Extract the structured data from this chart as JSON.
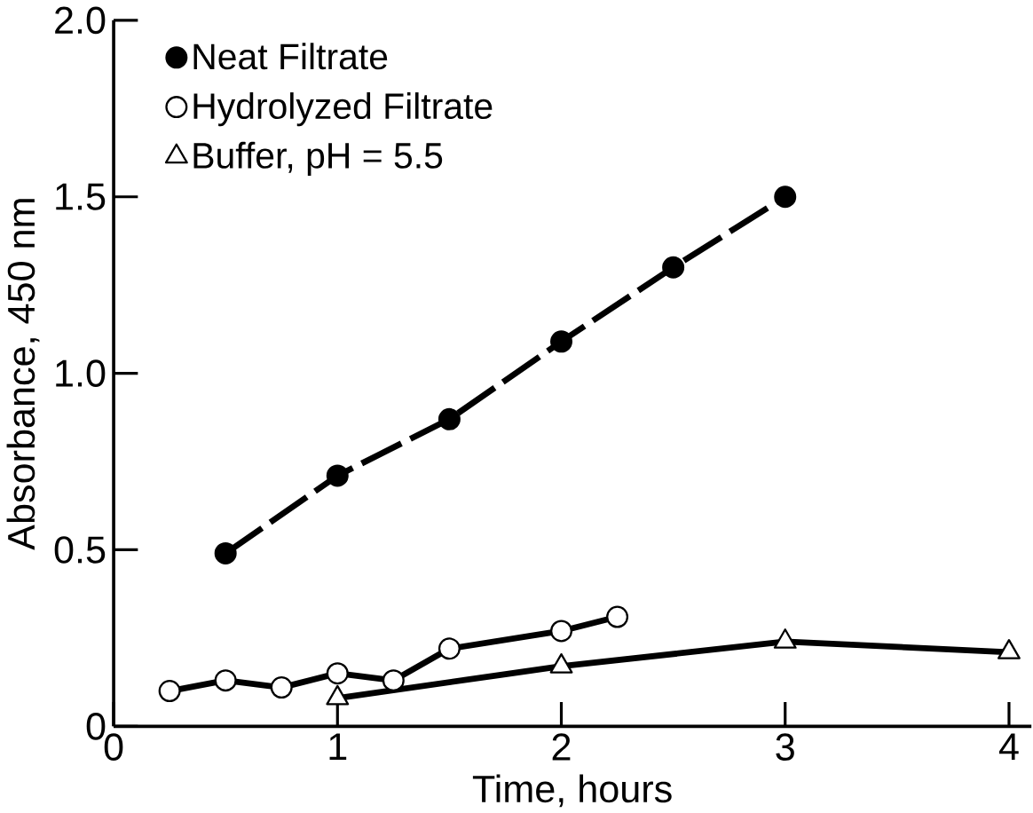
{
  "chart_data": {
    "type": "line",
    "xlabel": "Time, hours",
    "ylabel": "Absorbance, 450 nm",
    "xlim": [
      0,
      4.1
    ],
    "ylim": [
      0,
      2
    ],
    "xticks": [
      0,
      1,
      2,
      3,
      4
    ],
    "yticks": [
      0,
      0.5,
      {
        "value": 1,
        "label": "1.0"
      },
      1.5,
      {
        "value": 2,
        "label": "2.0"
      }
    ],
    "legend": "top left",
    "grid": false,
    "series": [
      {
        "name": "Neat Filtrate",
        "color": "#000000",
        "marker": "circle",
        "line_style": "dashed",
        "x": [
          0.5,
          1,
          1.5,
          2,
          2.5,
          3
        ],
        "values": [
          0.49,
          0.71,
          0.87,
          1.09,
          1.3,
          1.5
        ]
      },
      {
        "name": "Hydrolyzed Filtrate",
        "color": "#000000",
        "marker": "open circle",
        "line_style": "solid",
        "x": [
          0.25,
          0.5,
          0.75,
          1,
          1.25,
          1.5,
          2,
          2.25
        ],
        "values": [
          0.1,
          0.13,
          0.11,
          0.15,
          0.13,
          0.22,
          0.27,
          0.31
        ]
      },
      {
        "name": "Buffer, pH = 5.5",
        "color": "#000000",
        "marker": "triangle",
        "line_style": "solid",
        "x": [
          1,
          2,
          3,
          4
        ],
        "values": [
          0.08,
          0.17,
          0.24,
          0.21
        ]
      }
    ]
  }
}
